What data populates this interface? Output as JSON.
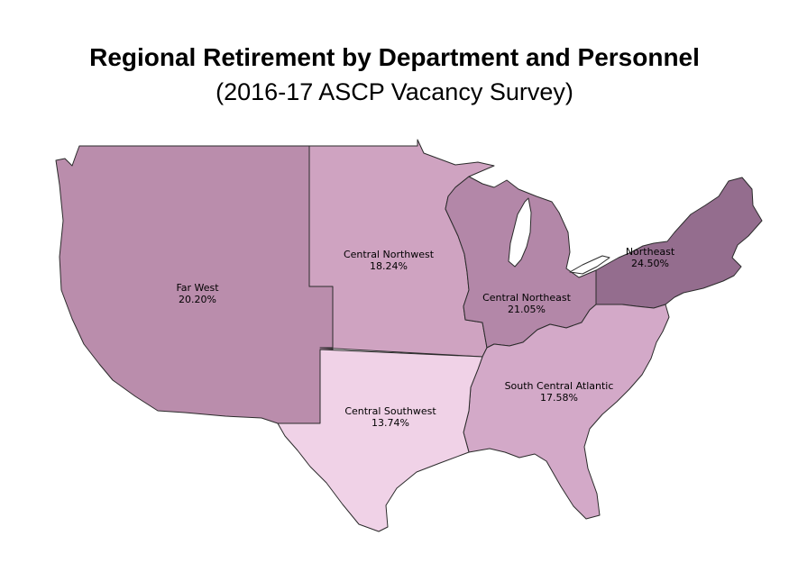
{
  "title": "Regional Retirement by Department and Personnel",
  "subtitle": "(2016-17 ASCP Vacancy Survey)",
  "colors": {
    "far_west": "#ba8dac",
    "central_northwest": "#cfa3c1",
    "central_northeast": "#b387a8",
    "northeast": "#946d8e",
    "south_central_atlantic": "#d3a9c8",
    "central_southwest": "#f0d2e7",
    "lakes": "#ffffff"
  },
  "regions": [
    {
      "key": "far_west",
      "name": "Far West",
      "value": "20.20%"
    },
    {
      "key": "central_northwest",
      "name": "Central Northwest",
      "value": "18.24%"
    },
    {
      "key": "central_northeast",
      "name": "Central Northeast",
      "value": "21.05%"
    },
    {
      "key": "northeast",
      "name": "Northeast",
      "value": "24.50%"
    },
    {
      "key": "south_central_atlantic",
      "name": "South Central Atlantic",
      "value": "17.58%"
    },
    {
      "key": "central_southwest",
      "name": "Central Southwest",
      "value": "13.74%"
    }
  ]
}
